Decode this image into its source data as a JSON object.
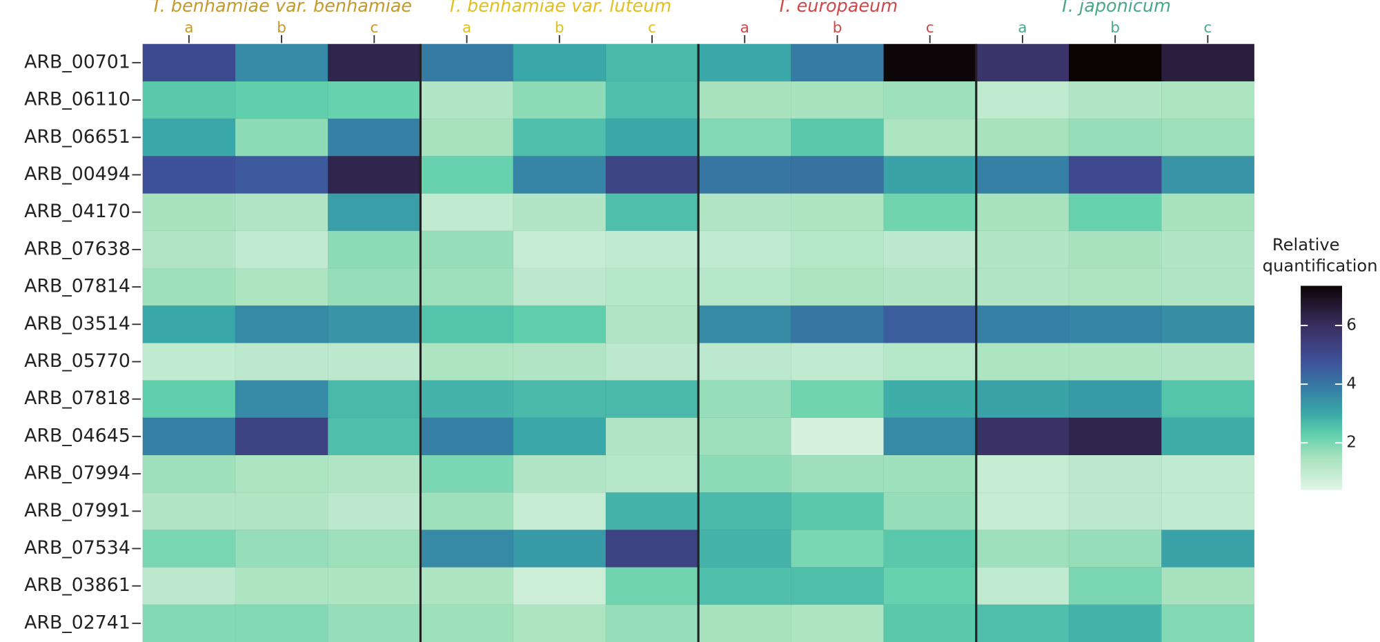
{
  "chart_data": {
    "type": "heatmap",
    "groups": [
      {
        "name": "T. benhamiae var. benhamiae",
        "color": "#c49a2c",
        "columns": [
          "a",
          "b",
          "c"
        ]
      },
      {
        "name": "T. benhamiae var. luteum",
        "color": "#e0c020",
        "columns": [
          "a",
          "b",
          "c"
        ]
      },
      {
        "name": "T. europaeum",
        "color": "#d04848",
        "columns": [
          "a",
          "b",
          "c"
        ]
      },
      {
        "name": "T. japonicum",
        "color": "#4aa88a",
        "columns": [
          "a",
          "b",
          "c"
        ]
      }
    ],
    "rows": [
      "ARB_00701",
      "ARB_06110",
      "ARB_06651",
      "ARB_00494",
      "ARB_04170",
      "ARB_07638",
      "ARB_07814",
      "ARB_03514",
      "ARB_05770",
      "ARB_07818",
      "ARB_04645",
      "ARB_07994",
      "ARB_07991",
      "ARB_07534",
      "ARB_03861",
      "ARB_02741"
    ],
    "values": [
      [
        5.0,
        3.6,
        6.3,
        3.9,
        3.0,
        2.7,
        3.0,
        3.9,
        7.3,
        5.8,
        7.35,
        6.5
      ],
      [
        2.4,
        2.3,
        2.2,
        1.3,
        1.8,
        2.6,
        1.5,
        1.5,
        1.6,
        1.0,
        1.3,
        1.4
      ],
      [
        3.0,
        1.8,
        3.8,
        1.5,
        2.6,
        3.0,
        1.9,
        2.4,
        1.4,
        1.5,
        1.7,
        1.6
      ],
      [
        4.8,
        4.6,
        6.3,
        2.2,
        3.7,
        5.2,
        4.0,
        4.1,
        3.1,
        3.8,
        5.1,
        3.4
      ],
      [
        1.5,
        1.3,
        3.2,
        1.0,
        1.3,
        2.6,
        1.3,
        1.4,
        2.1,
        1.5,
        2.2,
        1.5
      ],
      [
        1.3,
        1.0,
        1.8,
        1.7,
        0.9,
        1.0,
        1.0,
        1.2,
        1.1,
        1.3,
        1.5,
        1.3
      ],
      [
        1.6,
        1.4,
        1.7,
        1.6,
        1.1,
        1.2,
        1.2,
        1.4,
        1.3,
        1.3,
        1.4,
        1.3
      ],
      [
        3.0,
        3.6,
        3.4,
        2.5,
        2.3,
        1.3,
        3.6,
        4.0,
        4.5,
        3.8,
        3.7,
        3.5
      ],
      [
        1.0,
        1.1,
        1.1,
        1.4,
        1.3,
        1.1,
        1.1,
        1.0,
        1.2,
        1.4,
        1.4,
        1.3
      ],
      [
        2.3,
        3.6,
        2.7,
        2.8,
        2.7,
        2.7,
        1.7,
        2.1,
        2.9,
        3.1,
        3.3,
        2.5
      ],
      [
        3.8,
        5.3,
        2.6,
        3.8,
        3.0,
        1.3,
        1.6,
        0.6,
        3.6,
        5.9,
        6.3,
        2.9
      ],
      [
        1.6,
        1.4,
        1.3,
        2.0,
        1.3,
        1.2,
        1.8,
        1.6,
        1.6,
        0.9,
        1.1,
        1.0
      ],
      [
        1.3,
        1.3,
        1.1,
        1.6,
        0.9,
        2.8,
        2.7,
        2.4,
        1.7,
        0.9,
        1.1,
        1.0
      ],
      [
        2.0,
        1.7,
        1.6,
        3.6,
        3.3,
        5.3,
        2.8,
        2.0,
        2.4,
        1.6,
        1.7,
        3.1
      ],
      [
        1.1,
        1.4,
        1.4,
        1.4,
        0.8,
        2.1,
        2.6,
        2.6,
        2.2,
        1.0,
        2.0,
        1.5
      ],
      [
        1.9,
        1.9,
        1.7,
        1.6,
        1.4,
        1.7,
        1.5,
        1.4,
        2.4,
        2.6,
        2.8,
        1.9
      ]
    ],
    "colorbar": {
      "title": [
        "Relative",
        "quantification"
      ],
      "lim": [
        0.4,
        7.35
      ],
      "ticks": [
        2,
        4,
        6
      ],
      "colorscale": [
        [
          0.4,
          "#e0f5e6"
        ],
        [
          1.5,
          "#a8e2be"
        ],
        [
          2.3,
          "#5fcfac"
        ],
        [
          3.0,
          "#3aa8a8"
        ],
        [
          3.8,
          "#3580a4"
        ],
        [
          4.8,
          "#3f509a"
        ],
        [
          6.0,
          "#3a2e60"
        ],
        [
          7.35,
          "#0b0405"
        ]
      ]
    }
  }
}
